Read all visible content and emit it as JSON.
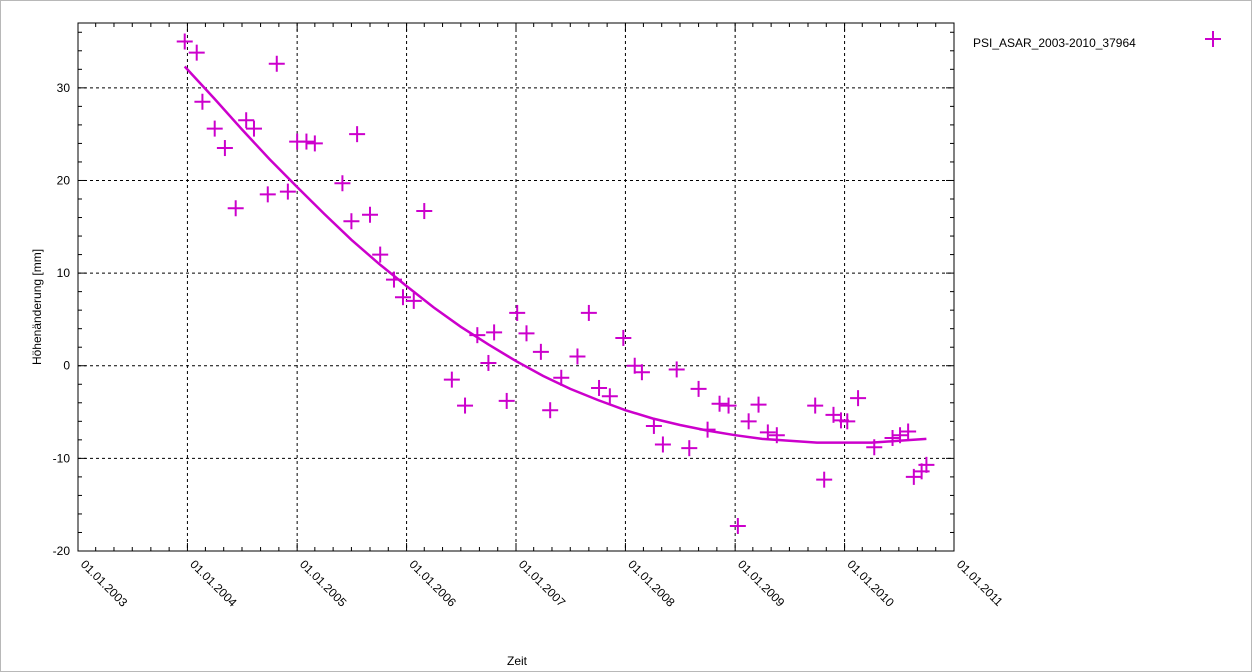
{
  "chart_data": {
    "type": "scatter",
    "title": "",
    "xlabel": "Zeit",
    "ylabel": "Höhenänderung [mm]",
    "xlim": [
      "2003-01-01",
      "2011-01-01"
    ],
    "ylim": [
      -20,
      37
    ],
    "grid": true,
    "legend_position": "top-right",
    "x_tick_labels": [
      "01.01.2003",
      "01.01.2004",
      "01.01.2005",
      "01.01.2006",
      "01.01.2007",
      "01.01.2008",
      "01.01.2009",
      "01.01.2010",
      "01.01.2011"
    ],
    "y_ticks": [
      -20,
      -10,
      0,
      10,
      20,
      30
    ],
    "marker_color": "#cc00cc",
    "series": [
      {
        "name": "PSI_ASAR_2003-2010_37964",
        "type": "scatter",
        "x": [
          "2003-12-23",
          "2004-02-01",
          "2004-02-20",
          "2004-04-01",
          "2004-05-05",
          "2004-06-10",
          "2004-07-15",
          "2004-08-10",
          "2004-09-25",
          "2004-10-25",
          "2004-12-01",
          "2005-01-01",
          "2005-02-01",
          "2005-03-01",
          "2005-06-01",
          "2005-07-01",
          "2005-07-20",
          "2005-09-01",
          "2005-10-05",
          "2005-11-20",
          "2005-12-20",
          "2006-01-25",
          "2006-03-01",
          "2006-06-01",
          "2006-07-15",
          "2006-08-25",
          "2006-10-01",
          "2006-10-20",
          "2006-12-01",
          "2007-01-05",
          "2007-02-05",
          "2007-03-25",
          "2007-04-25",
          "2007-06-01",
          "2007-07-25",
          "2007-09-01",
          "2007-10-05",
          "2007-11-10",
          "2007-12-25",
          "2008-02-01",
          "2008-02-25",
          "2008-04-05",
          "2008-05-05",
          "2008-06-20",
          "2008-08-01",
          "2008-09-01",
          "2008-10-01",
          "2008-11-10",
          "2008-12-10",
          "2009-01-10",
          "2009-02-15",
          "2009-03-20",
          "2009-04-20",
          "2009-05-20",
          "2009-09-25",
          "2009-10-25",
          "2009-11-25",
          "2009-12-20",
          "2010-01-10",
          "2010-02-15",
          "2010-04-10",
          "2010-06-10",
          "2010-07-05",
          "2010-08-01",
          "2010-08-20",
          "2010-09-15",
          "2010-10-01"
        ],
        "y": [
          35.0,
          33.8,
          28.5,
          25.6,
          23.5,
          17.0,
          26.5,
          25.6,
          18.5,
          32.6,
          18.8,
          24.2,
          24.2,
          24.0,
          19.7,
          15.6,
          25.0,
          16.3,
          12.0,
          9.3,
          7.4,
          7.0,
          16.7,
          -1.5,
          -4.3,
          3.3,
          0.3,
          3.6,
          -3.8,
          5.7,
          3.5,
          1.5,
          -4.8,
          -1.3,
          1.0,
          5.7,
          -2.4,
          -3.3,
          3.0,
          0.0,
          -0.7,
          -6.5,
          -8.5,
          -0.4,
          -8.9,
          -2.5,
          -6.9,
          -4.1,
          -4.3,
          -17.3,
          -6.0,
          -4.2,
          -7.2,
          -7.5,
          -4.3,
          -12.3,
          -5.3,
          -5.9,
          -6.0,
          -3.5,
          -8.8,
          -7.8,
          -7.5,
          -7.1,
          -12.0,
          -11.4,
          -10.7
        ]
      },
      {
        "name": "",
        "type": "line",
        "x": [
          "2003-12-23",
          "2004-04-01",
          "2004-07-01",
          "2004-10-01",
          "2005-01-01",
          "2005-04-01",
          "2005-07-01",
          "2005-10-01",
          "2006-01-01",
          "2006-04-01",
          "2006-07-01",
          "2006-10-01",
          "2007-01-01",
          "2007-04-01",
          "2007-07-01",
          "2007-10-01",
          "2008-01-01",
          "2008-04-01",
          "2008-07-01",
          "2008-10-01",
          "2009-01-01",
          "2009-04-01",
          "2009-07-01",
          "2009-10-01",
          "2010-01-01",
          "2010-04-01",
          "2010-07-01",
          "2010-10-01"
        ],
        "y": [
          32.3,
          28.8,
          25.5,
          22.3,
          19.3,
          16.4,
          13.6,
          11.0,
          8.6,
          6.3,
          4.2,
          2.3,
          0.5,
          -1.1,
          -2.5,
          -3.7,
          -4.8,
          -5.7,
          -6.4,
          -7.0,
          -7.5,
          -7.9,
          -8.1,
          -8.3,
          -8.3,
          -8.3,
          -8.1,
          -7.9
        ]
      }
    ]
  }
}
